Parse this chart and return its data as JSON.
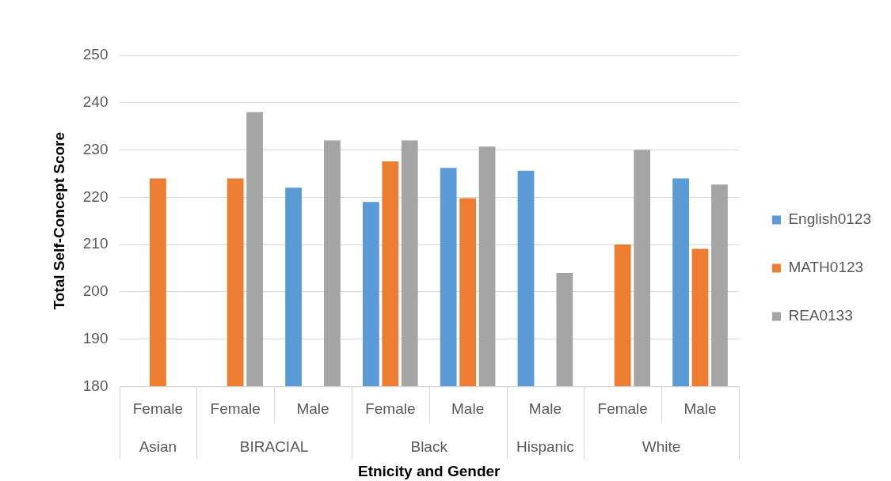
{
  "chart_data": {
    "type": "bar",
    "xlabel": "Etnicity and Gender",
    "ylabel": "Total Self-Concept Score",
    "categories": [
      "Female",
      "Female",
      "Male",
      "Female",
      "Male",
      "Male",
      "Female",
      "Male"
    ],
    "annotations": [
      "Asian",
      "BIRACIAL",
      "Black",
      "Hispanic",
      "White"
    ],
    "series": [
      {
        "name": "English0123",
        "color": "#5b9bd5",
        "values": [
          null,
          null,
          222,
          219,
          226.2,
          225.6,
          null,
          224
        ]
      },
      {
        "name": "MATH0123",
        "color": "#ed7d31",
        "values": [
          224,
          224,
          null,
          227.6,
          219.8,
          null,
          210,
          209.1
        ]
      },
      {
        "name": "REA0133",
        "color": "#a5a5a5",
        "values": [
          null,
          238,
          232,
          232,
          230.7,
          204,
          230,
          222.7
        ]
      }
    ],
    "ylim": [
      180,
      250
    ],
    "yticks": [
      180,
      190,
      200,
      210,
      220,
      230,
      240,
      250
    ],
    "grid": "y",
    "legend": "right"
  }
}
